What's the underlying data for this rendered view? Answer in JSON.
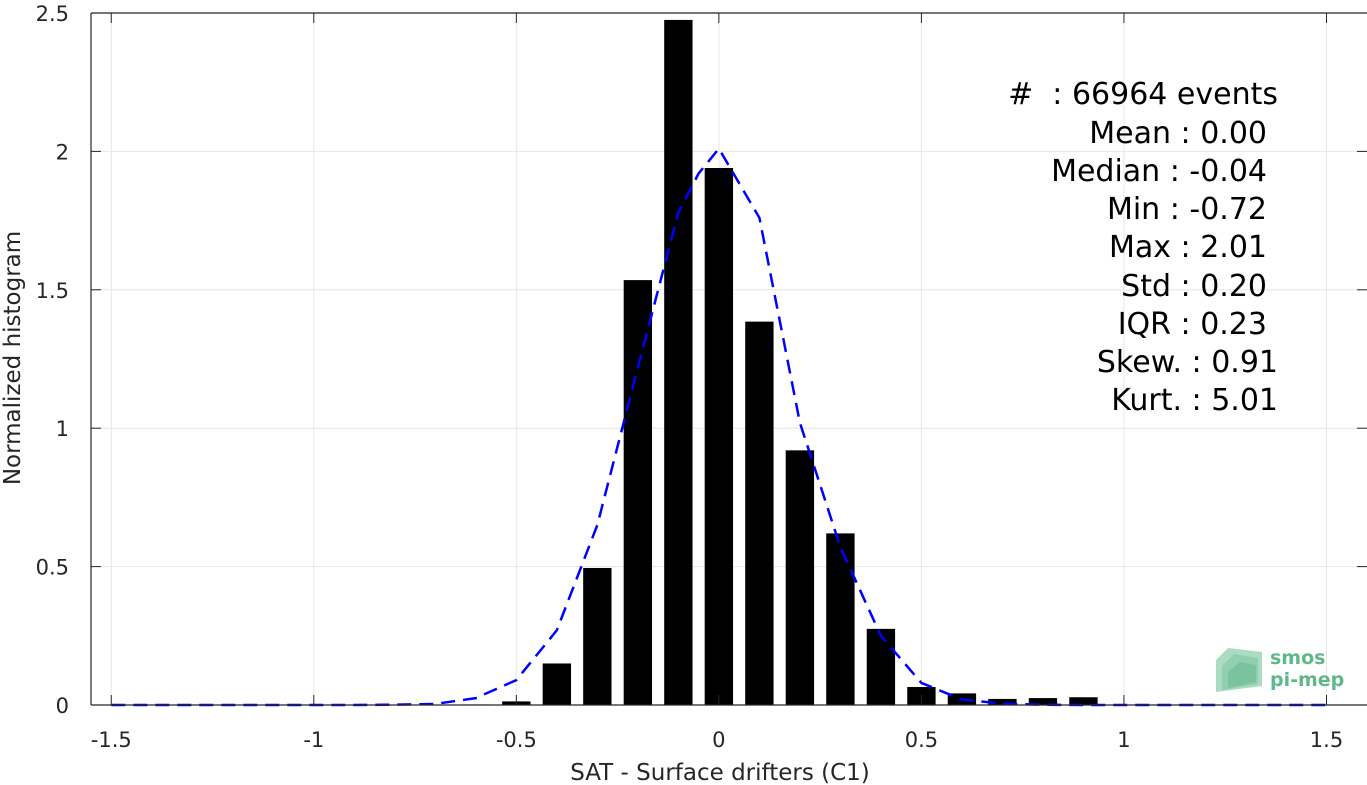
{
  "chart_data": {
    "type": "bar",
    "xlabel": "SAT - Surface drifters (C1)",
    "ylabel": "Normalized histogram",
    "xlim": [
      -1.55,
      1.6
    ],
    "ylim": [
      0,
      2.5
    ],
    "xticks": [
      -1.5,
      -1,
      -0.5,
      0,
      0.5,
      1,
      1.5
    ],
    "xtick_labels": [
      "-1.5",
      "-1",
      "-0.5",
      "0",
      "0.5",
      "1",
      "1.5"
    ],
    "yticks": [
      0,
      0.5,
      1,
      1.5,
      2,
      2.5
    ],
    "ytick_labels": [
      "0",
      "0.5",
      "1",
      "1.5",
      "2",
      "2.5"
    ],
    "grid": true,
    "bar_width": 0.07,
    "bar_color": "#000000",
    "bars": [
      {
        "x": -0.6,
        "y": 0.002
      },
      {
        "x": -0.5,
        "y": 0.013
      },
      {
        "x": -0.4,
        "y": 0.15
      },
      {
        "x": -0.3,
        "y": 0.495
      },
      {
        "x": -0.2,
        "y": 1.535
      },
      {
        "x": -0.1,
        "y": 2.475
      },
      {
        "x": 0.0,
        "y": 1.94
      },
      {
        "x": 0.1,
        "y": 1.385
      },
      {
        "x": 0.2,
        "y": 0.92
      },
      {
        "x": 0.3,
        "y": 0.62
      },
      {
        "x": 0.4,
        "y": 0.275
      },
      {
        "x": 0.5,
        "y": 0.065
      },
      {
        "x": 0.6,
        "y": 0.042
      },
      {
        "x": 0.7,
        "y": 0.022
      },
      {
        "x": 0.8,
        "y": 0.025
      },
      {
        "x": 0.9,
        "y": 0.028
      }
    ],
    "fit_curve": {
      "color": "#0000ff",
      "style": "dashed",
      "x": [
        -1.5,
        -1.4,
        -1.3,
        -1.2,
        -1.1,
        -1.0,
        -0.9,
        -0.8,
        -0.7,
        -0.6,
        -0.5,
        -0.4,
        -0.3,
        -0.2,
        -0.1,
        -0.05,
        0.0,
        0.1,
        0.2,
        0.3,
        0.4,
        0.5,
        0.6,
        0.7,
        0.8,
        0.9,
        1.0,
        1.1,
        1.2,
        1.3,
        1.4,
        1.5
      ],
      "y": [
        0,
        0,
        0,
        0,
        0,
        0,
        0,
        0.001,
        0.004,
        0.025,
        0.09,
        0.27,
        0.65,
        1.22,
        1.78,
        1.92,
        2.01,
        1.76,
        1.02,
        0.57,
        0.25,
        0.08,
        0.02,
        0.005,
        0.001,
        0,
        0,
        0,
        0,
        0,
        0,
        0
      ]
    }
  },
  "stats": {
    "lines": [
      "#  : 66964 events",
      "Mean : 0.00",
      "Median : -0.04",
      "Min : -0.72",
      "Max : 2.01",
      "Std : 0.20",
      "IQR : 0.23",
      "Skew. : 0.91",
      "Kurt. : 5.01"
    ]
  },
  "logo": {
    "line1": "smos",
    "line2": "pi-mep",
    "color": "#5fb88a"
  }
}
